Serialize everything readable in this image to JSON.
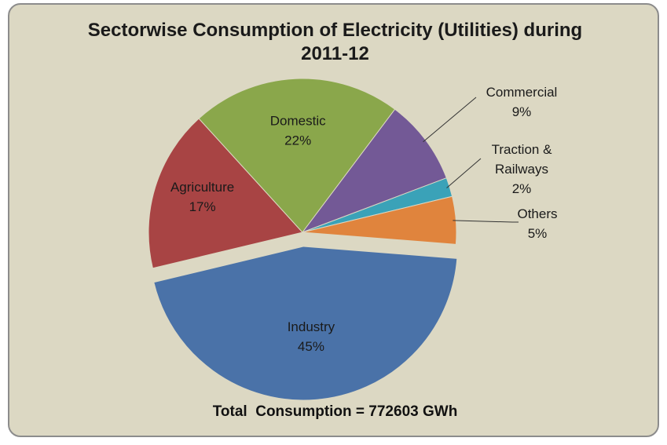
{
  "chart_data": {
    "type": "pie",
    "title_line1": "Sectorwise Consumption of Electricity (Utilities) during",
    "title_line2": "2011-12",
    "footer": "Total  Consumption = 772603 GWh",
    "slices": [
      {
        "name": "Industry",
        "name_lines": [
          "Industry"
        ],
        "value": 45,
        "label": "45%",
        "color": "#4a72a8",
        "exploded": true
      },
      {
        "name": "Agriculture",
        "name_lines": [
          "Agriculture"
        ],
        "value": 17,
        "label": "17%",
        "color": "#a84444"
      },
      {
        "name": "Domestic",
        "name_lines": [
          "Domestic"
        ],
        "value": 22,
        "label": "22%",
        "color": "#8aa74b"
      },
      {
        "name": "Commercial",
        "name_lines": [
          "Commercial"
        ],
        "value": 9,
        "label": "9%",
        "color": "#735996"
      },
      {
        "name": "Traction & Railways",
        "name_lines": [
          "Traction &",
          "Railways"
        ],
        "value": 2,
        "label": "2%",
        "color": "#3aa2b8"
      },
      {
        "name": "Others",
        "name_lines": [
          "Others"
        ],
        "value": 5,
        "label": "5%",
        "color": "#e0843d"
      }
    ]
  }
}
